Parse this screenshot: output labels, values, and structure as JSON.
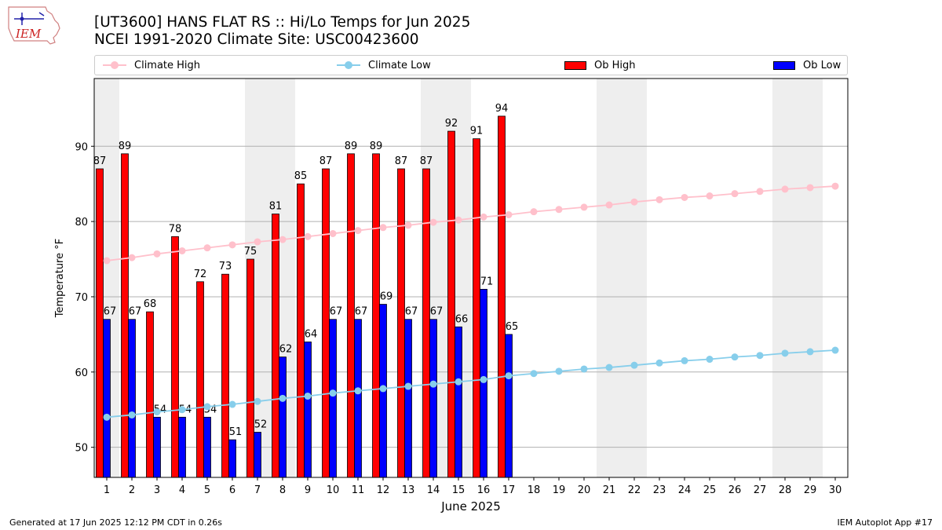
{
  "header": {
    "logo_text": "IEM",
    "title_line1": "[UT3600] HANS FLAT RS :: Hi/Lo Temps for Jun 2025",
    "title_line2": "NCEI 1991-2020 Climate Site: USC00423600"
  },
  "legend": {
    "climate_high": "Climate High",
    "climate_low": "Climate Low",
    "ob_high": "Ob High",
    "ob_low": "Ob Low"
  },
  "colors": {
    "ob_high": "#ff0000",
    "ob_low": "#0000ff",
    "climate_high": "#ffc0cb",
    "climate_low": "#87ceeb",
    "weekend_shade": "#eeeeee",
    "grid": "#b0b0b0"
  },
  "chart_data": {
    "type": "bar",
    "xlabel": "June 2025",
    "ylabel": "Temperature °F",
    "ylim": [
      46,
      99
    ],
    "yticks": [
      50,
      60,
      70,
      80,
      90
    ],
    "grid": true,
    "legend_position": "top",
    "categories": [
      "1",
      "2",
      "3",
      "4",
      "5",
      "6",
      "7",
      "8",
      "9",
      "10",
      "11",
      "12",
      "13",
      "14",
      "15",
      "16",
      "17",
      "18",
      "19",
      "20",
      "21",
      "22",
      "23",
      "24",
      "25",
      "26",
      "27",
      "28",
      "29",
      "30"
    ],
    "weekend_days": [
      1,
      7,
      8,
      14,
      15,
      21,
      22,
      28,
      29
    ],
    "ob_high": [
      87,
      89,
      68,
      78,
      72,
      73,
      75,
      81,
      85,
      87,
      89,
      89,
      87,
      87,
      92,
      91,
      94
    ],
    "ob_low": [
      67,
      67,
      54,
      54,
      54,
      51,
      52,
      62,
      64,
      67,
      67,
      69,
      67,
      67,
      66,
      71,
      65
    ],
    "climate_high": [
      74.8,
      75.2,
      75.7,
      76.1,
      76.5,
      76.9,
      77.3,
      77.6,
      78.0,
      78.4,
      78.8,
      79.2,
      79.5,
      79.9,
      80.2,
      80.6,
      80.9,
      81.3,
      81.6,
      81.9,
      82.2,
      82.6,
      82.9,
      83.2,
      83.4,
      83.7,
      84.0,
      84.3,
      84.5,
      84.7
    ],
    "climate_low": [
      54.0,
      54.3,
      54.7,
      55.0,
      55.4,
      55.7,
      56.1,
      56.5,
      56.8,
      57.2,
      57.5,
      57.8,
      58.1,
      58.4,
      58.7,
      59.0,
      59.5,
      59.8,
      60.1,
      60.4,
      60.6,
      60.9,
      61.2,
      61.5,
      61.7,
      62.0,
      62.2,
      62.5,
      62.7,
      62.9
    ]
  },
  "footer": {
    "generated": "Generated at 17 Jun 2025 12:12 PM CDT in 0.26s",
    "app": "IEM Autoplot App #17"
  }
}
